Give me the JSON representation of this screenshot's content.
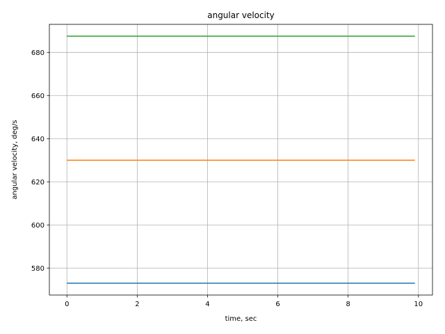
{
  "chart_data": {
    "type": "line",
    "title": "angular velocity",
    "xlabel": "time, sec",
    "ylabel": "angular velocity, deg/s",
    "xlim": [
      -0.5,
      10.4
    ],
    "ylim": [
      567.5,
      693.0
    ],
    "xticks": [
      0,
      2,
      4,
      6,
      8,
      10
    ],
    "yticks": [
      580,
      600,
      620,
      640,
      660,
      680
    ],
    "xtick_labels": [
      "0",
      "2",
      "4",
      "6",
      "8",
      "10"
    ],
    "ytick_labels": [
      "580",
      "600",
      "620",
      "640",
      "660",
      "680"
    ],
    "grid": true,
    "series": [
      {
        "x": [
          0,
          9.9
        ],
        "values": [
          573.0,
          573.0
        ],
        "color": "#1f77b4"
      },
      {
        "x": [
          0,
          9.9
        ],
        "values": [
          630.0,
          630.0
        ],
        "color": "#ff7f0e"
      },
      {
        "x": [
          0,
          9.9
        ],
        "values": [
          687.5,
          687.5
        ],
        "color": "#2ca02c"
      }
    ]
  }
}
